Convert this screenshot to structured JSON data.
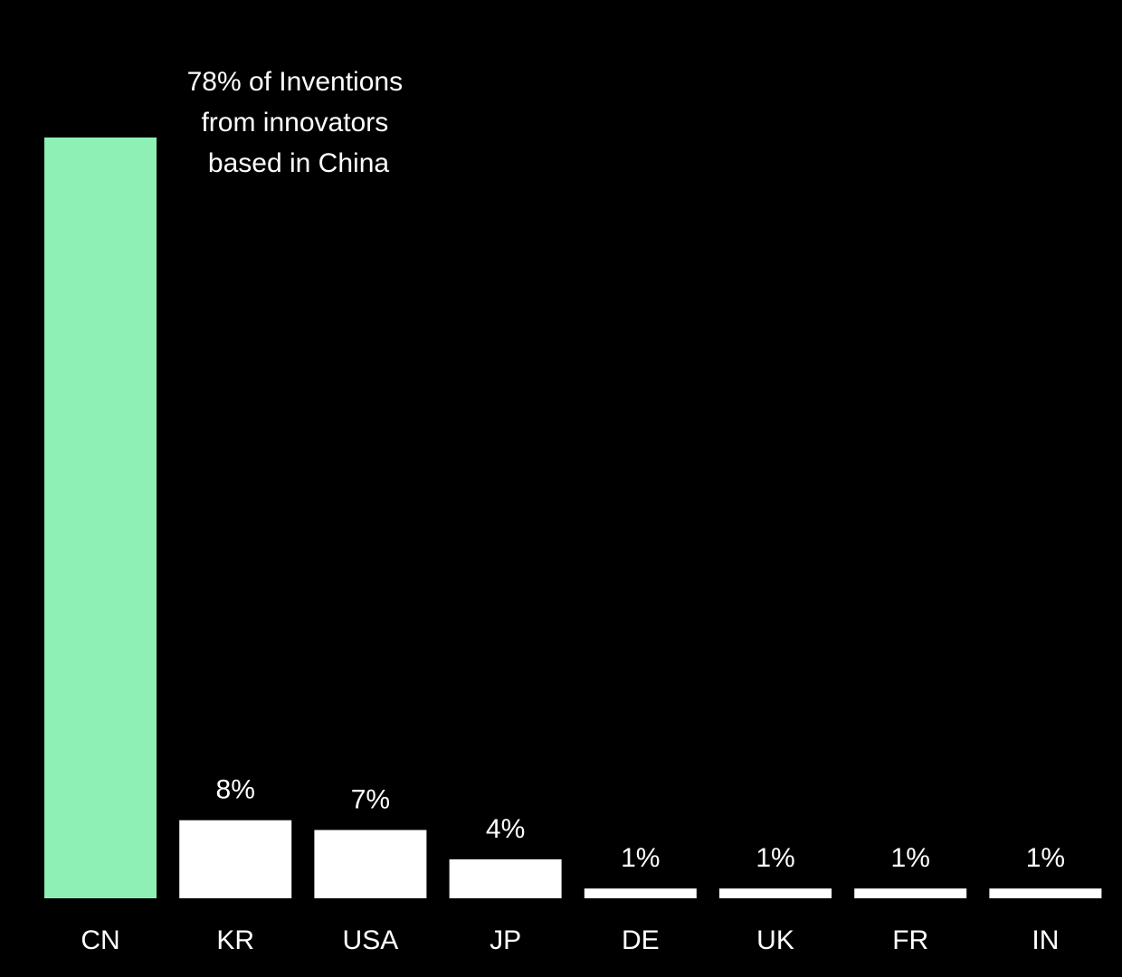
{
  "chart_data": {
    "type": "bar",
    "title": "",
    "xlabel": "",
    "ylabel": "",
    "ylim": [
      0,
      78
    ],
    "grid": false,
    "categories": [
      "CN",
      "KR",
      "USA",
      "JP",
      "DE",
      "UK",
      "FR",
      "IN"
    ],
    "values": [
      78,
      8,
      7,
      4,
      1,
      1,
      1,
      1
    ],
    "value_labels": [
      "",
      "8%",
      "7%",
      "4%",
      "1%",
      "1%",
      "1%",
      "1%"
    ],
    "colors": {
      "background": "#000000",
      "highlight_bar": "#8ef0b4",
      "bar": "#ffffff",
      "text": "#ffffff"
    },
    "annotation": {
      "lines": [
        "78% of Inventions",
        "from innovators",
        "based in China"
      ]
    }
  }
}
